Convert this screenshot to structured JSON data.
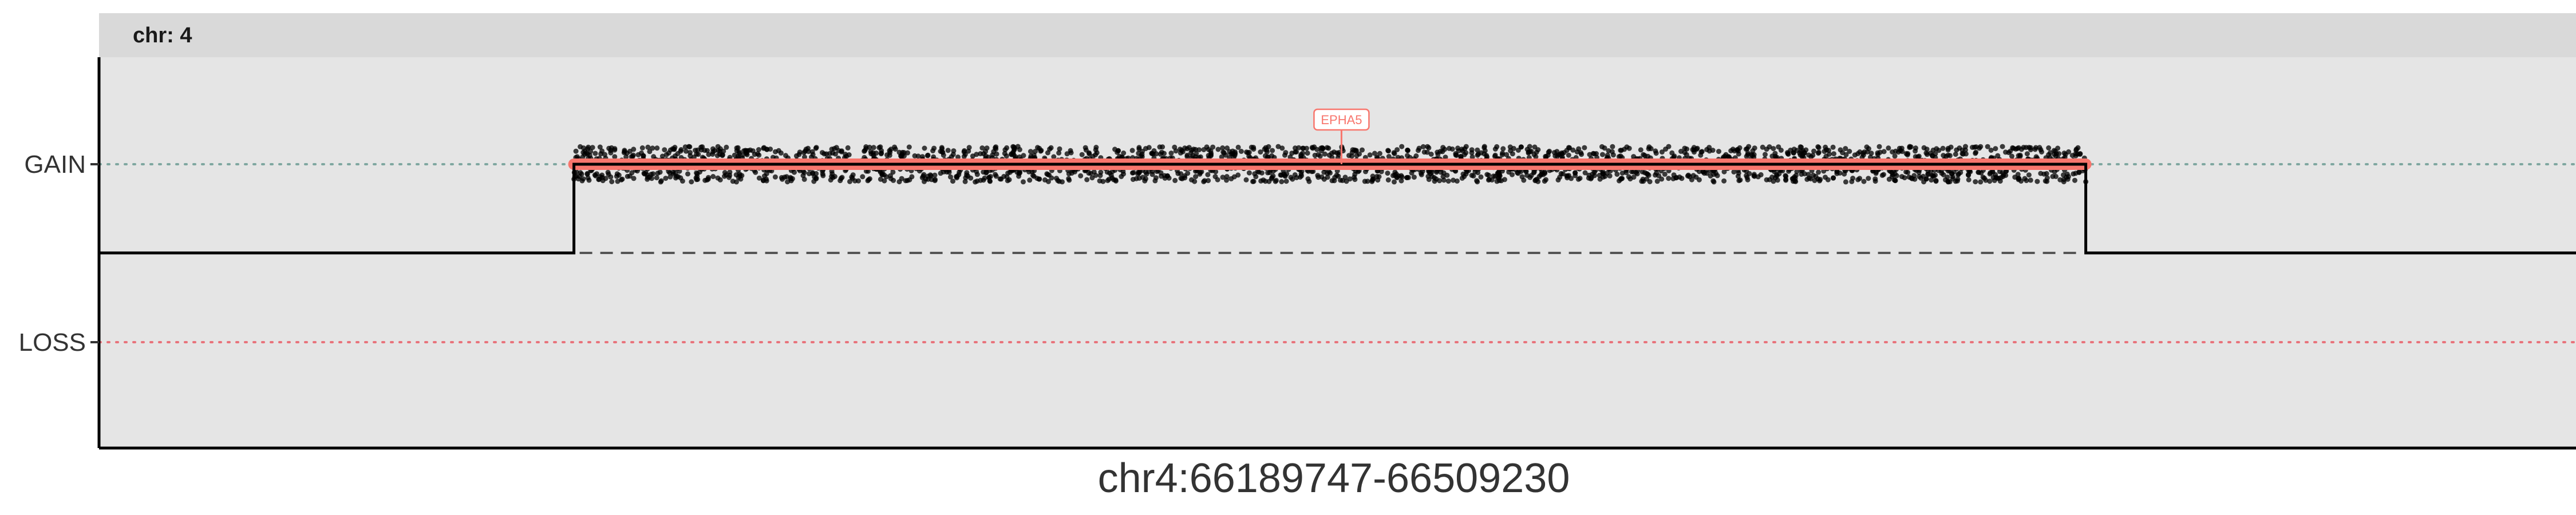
{
  "chart_data": {
    "type": "scatter",
    "facet_label": "chr: 4",
    "xlabel": "chr4:66189747-66509230",
    "y_categories": [
      "GAIN",
      "LOSS"
    ],
    "x_range": [
      66189747,
      66509230
    ],
    "segment": {
      "status": "GAIN",
      "start": 66251000,
      "end": 66446000,
      "color": "#F8766D"
    },
    "gene_annotations": [
      {
        "name": "EPHA5",
        "position": 66350000,
        "color": "#F8766D"
      }
    ],
    "baseline_color": "#000000",
    "gain_line_color": "#7FA7A0",
    "loss_line_color": "#E8737B",
    "point_color": "#000000",
    "panel_background": "#E5E5E5",
    "strip_background": "#D9D9D9",
    "grid": false
  }
}
